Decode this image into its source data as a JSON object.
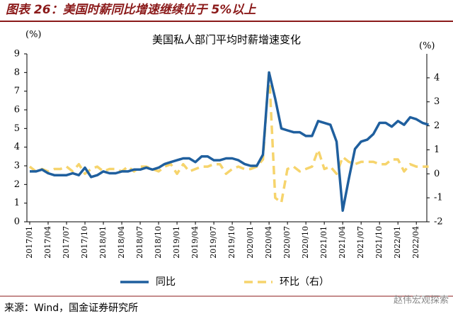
{
  "header": "图表 26：美国时薪同比增速继续位于 5%以上",
  "source": "来源：Wind，国金证券研究所",
  "watermark": "赵伟宏观探索",
  "chart_data": {
    "type": "line",
    "title": "美国私人部门平均时薪增速变化",
    "y_label": "(%)",
    "y2_label": "(%)",
    "categories": [
      "2017/01",
      null,
      null,
      "2017/04",
      null,
      null,
      "2017/07",
      null,
      null,
      "2017/10",
      null,
      null,
      "2018/01",
      null,
      null,
      "2018/04",
      null,
      null,
      "2018/07",
      null,
      null,
      "2018/10",
      null,
      null,
      "2019/01",
      null,
      null,
      "2019/04",
      null,
      null,
      "2019/07",
      null,
      null,
      "2019/10",
      null,
      null,
      "2020/01",
      null,
      null,
      "2020/04",
      null,
      null,
      "2020/07",
      null,
      null,
      "2020/10",
      null,
      null,
      "2021/01",
      null,
      null,
      "2021/04",
      null,
      null,
      "2021/07",
      null,
      null,
      "2021/10",
      null,
      null,
      "2022/01",
      null,
      null,
      "2022/04",
      null,
      null
    ],
    "series": [
      {
        "name": "同比",
        "color": "#1f5f9e",
        "dash": false,
        "values": [
          2.7,
          2.7,
          2.8,
          2.6,
          2.5,
          2.5,
          2.5,
          2.6,
          2.5,
          2.9,
          2.4,
          2.5,
          2.7,
          2.6,
          2.6,
          2.7,
          2.7,
          2.8,
          2.8,
          2.9,
          2.8,
          2.9,
          3.1,
          3.2,
          3.3,
          3.4,
          3.4,
          3.2,
          3.5,
          3.5,
          3.3,
          3.3,
          3.4,
          3.4,
          3.3,
          3.1,
          3.0,
          3.0,
          3.6,
          8.0,
          6.6,
          5.0,
          4.9,
          4.8,
          4.8,
          4.6,
          4.6,
          5.4,
          5.3,
          5.2,
          4.3,
          0.6,
          2.3,
          3.9,
          4.3,
          4.4,
          4.7,
          5.3,
          5.3,
          5.1,
          5.4,
          5.2,
          5.6,
          5.5,
          5.3,
          5.2
        ]
      },
      {
        "name": "环比（右）",
        "color": "#f6d46c",
        "dash": true,
        "axis": "y2",
        "values": [
          0.3,
          0.1,
          0.2,
          0.1,
          0.2,
          0.2,
          0.3,
          0.1,
          0.4,
          0.0,
          0.2,
          0.3,
          0.1,
          0.2,
          0.2,
          0.1,
          0.3,
          0.1,
          0.3,
          0.3,
          0.2,
          0.1,
          0.3,
          0.4,
          0.0,
          0.4,
          0.1,
          0.2,
          0.3,
          0.3,
          0.4,
          0.4,
          0.0,
          0.2,
          0.3,
          0.2,
          0.2,
          0.3,
          0.6,
          4.3,
          -1.0,
          -1.2,
          0.2,
          0.3,
          0.1,
          0.2,
          0.3,
          1.0,
          0.2,
          0.3,
          0.0,
          0.7,
          0.5,
          0.4,
          0.5,
          0.5,
          0.5,
          0.4,
          0.4,
          0.6,
          0.6,
          0.1,
          0.4,
          0.3,
          0.3,
          0.3
        ]
      }
    ],
    "ylim": [
      0,
      9
    ],
    "yticks": [
      0,
      1,
      2,
      3,
      4,
      5,
      6,
      7,
      8,
      9
    ],
    "y2lim": [
      -2,
      5
    ],
    "y2ticks": [
      -2,
      -1,
      0,
      1,
      2,
      3,
      4
    ]
  }
}
